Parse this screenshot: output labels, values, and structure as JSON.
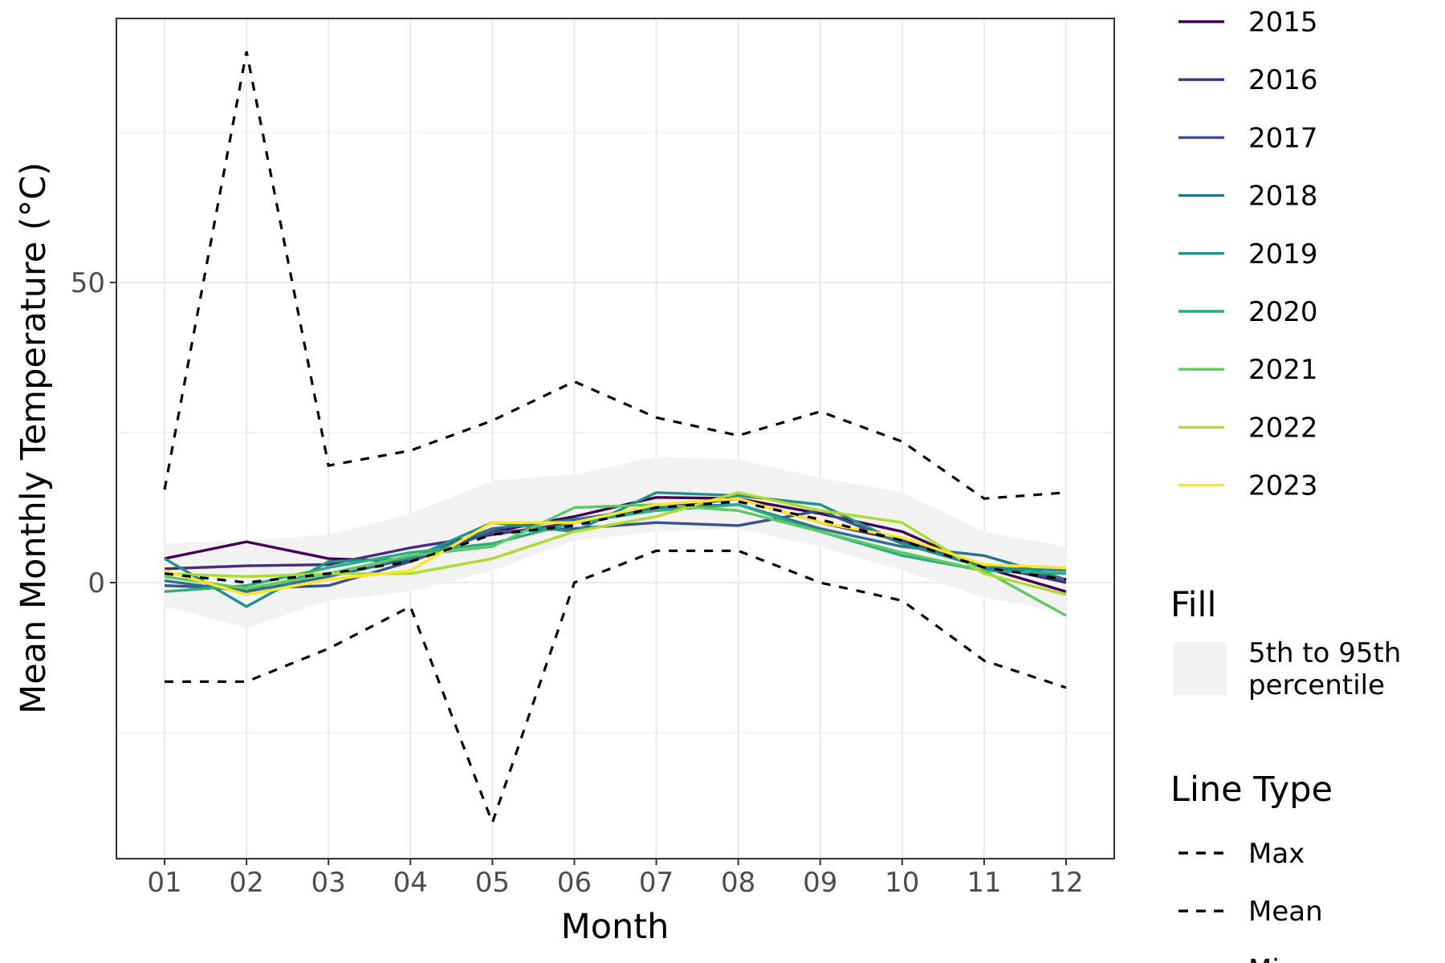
{
  "chart_data": {
    "type": "line",
    "xlabel": "Month",
    "ylabel": "Mean Monthly Temperature (°C)",
    "categories": [
      "01",
      "02",
      "03",
      "04",
      "05",
      "06",
      "07",
      "08",
      "09",
      "10",
      "11",
      "12"
    ],
    "yticks": [
      0,
      50
    ],
    "ylim": [
      -46,
      94
    ],
    "grid": true,
    "legend_position": "right",
    "band": {
      "name": "5th to 95th percentile",
      "color": "#f2f2f2",
      "lower": [
        -4,
        -7.5,
        -3,
        -1.5,
        2,
        7,
        8.5,
        9,
        6,
        2,
        -2.5,
        -5
      ],
      "upper": [
        6.5,
        7,
        8,
        11.5,
        17,
        18,
        21,
        20.5,
        17.5,
        15,
        8.5,
        6
      ]
    },
    "year_series": [
      {
        "name": "2015",
        "color": "#440154",
        "values": [
          4,
          6.8,
          4,
          3.5,
          8.5,
          11,
          14.2,
          14,
          11.5,
          8.5,
          2.5,
          -1.5
        ]
      },
      {
        "name": "2016",
        "color": "#472D7B",
        "values": [
          2.3,
          2.8,
          3,
          5.8,
          8,
          10,
          12.5,
          14,
          10,
          7,
          3,
          0
        ]
      },
      {
        "name": "2017",
        "color": "#3B528B",
        "values": [
          -0.5,
          -1,
          -0.5,
          3.5,
          8.5,
          9,
          10,
          9.5,
          12,
          6.5,
          3,
          0.5
        ]
      },
      {
        "name": "2018",
        "color": "#2C728E",
        "values": [
          0.3,
          -1.5,
          1,
          4,
          9,
          10.5,
          12.5,
          13,
          9,
          6,
          4.5,
          0.5
        ]
      },
      {
        "name": "2019",
        "color": "#21918C",
        "values": [
          4,
          -4,
          3.5,
          4,
          10,
          8.5,
          15,
          14.5,
          13,
          6.5,
          2.5,
          2
        ]
      },
      {
        "name": "2020",
        "color": "#28AE80",
        "values": [
          -1.5,
          -0.5,
          2.5,
          5,
          6.5,
          10,
          12,
          13,
          8.5,
          4.5,
          2,
          1.5
        ]
      },
      {
        "name": "2021",
        "color": "#5EC962",
        "values": [
          1,
          -1,
          1.5,
          4.5,
          6,
          12.5,
          13,
          12,
          8.5,
          5,
          2,
          -5.5
        ]
      },
      {
        "name": "2022",
        "color": "#ADDC30",
        "values": [
          1.5,
          1,
          1.5,
          1.5,
          4,
          8.5,
          11,
          15,
          12,
          10,
          1.5,
          -2
        ]
      },
      {
        "name": "2023",
        "color": "#FDE725",
        "values": [
          2,
          -2,
          0.5,
          2,
          10,
          10,
          13,
          14,
          10,
          7.5,
          3,
          2.5
        ]
      }
    ],
    "stat_series": [
      {
        "name": "Max",
        "values": [
          15.5,
          88.5,
          19.5,
          22,
          27,
          33.5,
          27.5,
          24.5,
          28.5,
          23.5,
          14,
          15
        ]
      },
      {
        "name": "Mean",
        "values": [
          1.5,
          0,
          1.5,
          3.5,
          8,
          9.5,
          12.5,
          13.5,
          10.5,
          7,
          2.5,
          0.5
        ]
      },
      {
        "name": "Min",
        "values": [
          -16.5,
          -16.5,
          -11,
          -4,
          -40,
          0,
          5.3,
          5.3,
          0,
          -3,
          -13,
          -17.5
        ]
      }
    ],
    "legend": {
      "fill_title": "Fill",
      "fill_label_lines": [
        "5th to 95th",
        "percentile"
      ],
      "linetype_title": "Line Type"
    }
  }
}
